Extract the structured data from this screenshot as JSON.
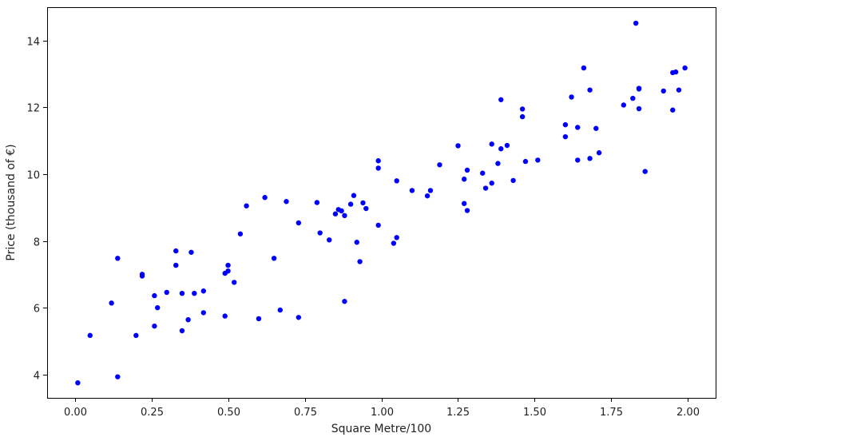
{
  "chart_data": {
    "type": "scatter",
    "xlabel": "Square Metre/100",
    "ylabel": "Price (thousand of €)",
    "xlim": [
      -0.09,
      2.09
    ],
    "ylim": [
      3.3,
      15.0
    ],
    "xticks": [
      0.0,
      0.25,
      0.5,
      0.75,
      1.0,
      1.25,
      1.5,
      1.75,
      2.0
    ],
    "xtick_labels": [
      "0.00",
      "0.25",
      "0.50",
      "0.75",
      "1.00",
      "1.25",
      "1.50",
      "1.75",
      "2.00"
    ],
    "yticks": [
      4,
      6,
      8,
      10,
      12,
      14
    ],
    "ytick_labels": [
      "4",
      "6",
      "8",
      "10",
      "12",
      "14"
    ],
    "grid": false,
    "colors": {
      "points": "#0000ff",
      "axes": "#000000",
      "background": "#ffffff"
    },
    "points": [
      {
        "x": 0.01,
        "y": 3.75
      },
      {
        "x": 0.05,
        "y": 5.17
      },
      {
        "x": 0.12,
        "y": 6.14
      },
      {
        "x": 0.14,
        "y": 7.48
      },
      {
        "x": 0.14,
        "y": 3.93
      },
      {
        "x": 0.2,
        "y": 5.17
      },
      {
        "x": 0.22,
        "y": 7.0
      },
      {
        "x": 0.22,
        "y": 6.95
      },
      {
        "x": 0.26,
        "y": 6.36
      },
      {
        "x": 0.26,
        "y": 5.45
      },
      {
        "x": 0.27,
        "y": 6.0
      },
      {
        "x": 0.3,
        "y": 6.46
      },
      {
        "x": 0.33,
        "y": 7.7
      },
      {
        "x": 0.33,
        "y": 7.27
      },
      {
        "x": 0.35,
        "y": 6.43
      },
      {
        "x": 0.35,
        "y": 5.31
      },
      {
        "x": 0.37,
        "y": 5.64
      },
      {
        "x": 0.38,
        "y": 7.66
      },
      {
        "x": 0.39,
        "y": 6.43
      },
      {
        "x": 0.42,
        "y": 6.5
      },
      {
        "x": 0.42,
        "y": 5.85
      },
      {
        "x": 0.5,
        "y": 7.27
      },
      {
        "x": 0.5,
        "y": 7.1
      },
      {
        "x": 0.49,
        "y": 7.03
      },
      {
        "x": 0.49,
        "y": 5.75
      },
      {
        "x": 0.52,
        "y": 6.76
      },
      {
        "x": 0.54,
        "y": 8.21
      },
      {
        "x": 0.56,
        "y": 9.05
      },
      {
        "x": 0.6,
        "y": 5.67
      },
      {
        "x": 0.62,
        "y": 9.3
      },
      {
        "x": 0.65,
        "y": 7.48
      },
      {
        "x": 0.67,
        "y": 5.93
      },
      {
        "x": 0.69,
        "y": 9.18
      },
      {
        "x": 0.73,
        "y": 8.54
      },
      {
        "x": 0.73,
        "y": 5.71
      },
      {
        "x": 0.79,
        "y": 9.15
      },
      {
        "x": 0.8,
        "y": 8.24
      },
      {
        "x": 0.83,
        "y": 8.03
      },
      {
        "x": 0.85,
        "y": 8.81
      },
      {
        "x": 0.86,
        "y": 8.94
      },
      {
        "x": 0.87,
        "y": 8.9
      },
      {
        "x": 0.88,
        "y": 8.76
      },
      {
        "x": 0.88,
        "y": 6.19
      },
      {
        "x": 0.9,
        "y": 9.1
      },
      {
        "x": 0.91,
        "y": 9.36
      },
      {
        "x": 0.92,
        "y": 7.96
      },
      {
        "x": 0.93,
        "y": 7.38
      },
      {
        "x": 0.94,
        "y": 9.14
      },
      {
        "x": 0.95,
        "y": 8.97
      },
      {
        "x": 0.99,
        "y": 10.4
      },
      {
        "x": 0.99,
        "y": 10.18
      },
      {
        "x": 0.99,
        "y": 8.47
      },
      {
        "x": 1.04,
        "y": 7.93
      },
      {
        "x": 1.05,
        "y": 8.1
      },
      {
        "x": 1.05,
        "y": 9.8
      },
      {
        "x": 1.1,
        "y": 9.51
      },
      {
        "x": 1.15,
        "y": 9.35
      },
      {
        "x": 1.16,
        "y": 9.51
      },
      {
        "x": 1.19,
        "y": 10.28
      },
      {
        "x": 1.25,
        "y": 10.85
      },
      {
        "x": 1.27,
        "y": 9.12
      },
      {
        "x": 1.27,
        "y": 9.85
      },
      {
        "x": 1.28,
        "y": 10.12
      },
      {
        "x": 1.28,
        "y": 8.91
      },
      {
        "x": 1.33,
        "y": 10.03
      },
      {
        "x": 1.34,
        "y": 9.58
      },
      {
        "x": 1.36,
        "y": 10.9
      },
      {
        "x": 1.36,
        "y": 9.73
      },
      {
        "x": 1.38,
        "y": 10.32
      },
      {
        "x": 1.39,
        "y": 12.23
      },
      {
        "x": 1.39,
        "y": 10.76
      },
      {
        "x": 1.41,
        "y": 10.86
      },
      {
        "x": 1.43,
        "y": 9.81
      },
      {
        "x": 1.46,
        "y": 11.95
      },
      {
        "x": 1.46,
        "y": 11.72
      },
      {
        "x": 1.47,
        "y": 10.38
      },
      {
        "x": 1.51,
        "y": 10.42
      },
      {
        "x": 1.6,
        "y": 11.48
      },
      {
        "x": 1.6,
        "y": 11.12
      },
      {
        "x": 1.62,
        "y": 12.31
      },
      {
        "x": 1.64,
        "y": 11.4
      },
      {
        "x": 1.64,
        "y": 10.42
      },
      {
        "x": 1.66,
        "y": 13.18
      },
      {
        "x": 1.68,
        "y": 12.52
      },
      {
        "x": 1.68,
        "y": 10.47
      },
      {
        "x": 1.7,
        "y": 11.37
      },
      {
        "x": 1.71,
        "y": 10.64
      },
      {
        "x": 1.79,
        "y": 12.07
      },
      {
        "x": 1.82,
        "y": 12.27
      },
      {
        "x": 1.83,
        "y": 14.52
      },
      {
        "x": 1.84,
        "y": 12.57
      },
      {
        "x": 1.84,
        "y": 12.55
      },
      {
        "x": 1.84,
        "y": 11.96
      },
      {
        "x": 1.86,
        "y": 10.08
      },
      {
        "x": 1.92,
        "y": 12.49
      },
      {
        "x": 1.95,
        "y": 13.04
      },
      {
        "x": 1.96,
        "y": 13.06
      },
      {
        "x": 1.97,
        "y": 12.52
      },
      {
        "x": 1.95,
        "y": 11.92
      },
      {
        "x": 1.99,
        "y": 13.18
      }
    ]
  }
}
